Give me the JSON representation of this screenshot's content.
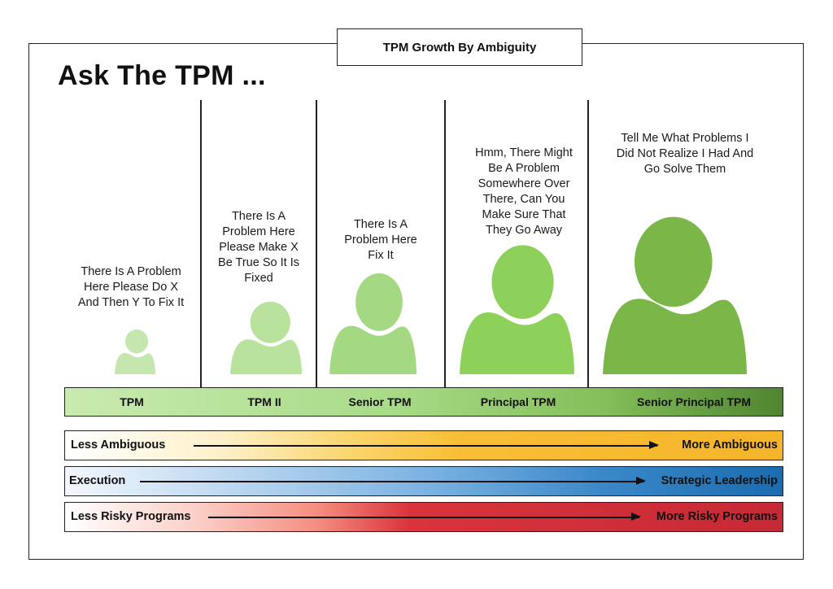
{
  "title_box": "TPM Growth By Ambiguity",
  "heading": "Ask The TPM ...",
  "columns": [
    {
      "level": "TPM",
      "quote": "There Is A Problem\nHere Please Do X\nAnd Then Y To Fix It",
      "color": "#c5e6ae"
    },
    {
      "level": "TPM II",
      "quote": "There Is A\nProblem Here\nPlease Make X\nBe True So It Is\nFixed",
      "color": "#b9e39c"
    },
    {
      "level": "Senior TPM",
      "quote": "There Is  A\nProblem Here\nFix It",
      "color": "#a4d883"
    },
    {
      "level": "Principal TPM",
      "quote": "Hmm, There Might\nBe A Problem\nSomewhere Over\nThere, Can You\nMake Sure That\nThey Go Away",
      "color": "#8ed15a"
    },
    {
      "level": "Senior Principal TPM",
      "quote": "Tell Me What Problems I\nDid Not Realize I Had And\nGo Solve Them",
      "color": "#7ab648"
    }
  ],
  "scales": [
    {
      "left": "Less Ambiguous",
      "right": "More Ambiguous",
      "color": "#f5b52a"
    },
    {
      "left": "Execution",
      "right": "Strategic Leadership",
      "color": "#1a6cb0"
    },
    {
      "left": "Less Risky Programs",
      "right": "More Risky Programs",
      "color": "#c62a36"
    }
  ]
}
